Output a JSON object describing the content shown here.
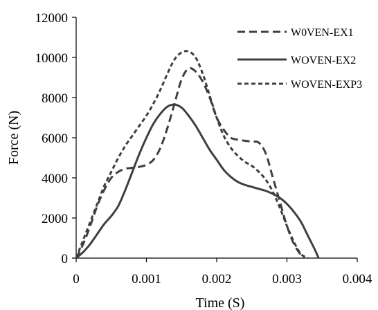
{
  "chart_data": {
    "type": "line",
    "title": "",
    "xlabel": "Time (S)",
    "ylabel": "Force (N)",
    "xlim": [
      0,
      0.004
    ],
    "ylim": [
      0,
      12000
    ],
    "x_ticks": [
      0,
      0.001,
      0.002,
      0.003,
      0.004
    ],
    "y_ticks": [
      0,
      2000,
      4000,
      6000,
      8000,
      10000,
      12000
    ],
    "x_tick_labels": [
      "0",
      "0.001",
      "0.002",
      "0.003",
      "0.004"
    ],
    "y_tick_labels": [
      "0",
      "2000",
      "4000",
      "6000",
      "8000",
      "10000",
      "12000"
    ],
    "grid": false,
    "legend_position": "top-right",
    "series": [
      {
        "name": "W0VEN-EX1",
        "style": "long-dash",
        "color": "#3f3f3f",
        "x": [
          0,
          0.0001,
          0.0002,
          0.0003,
          0.0004,
          0.0005,
          0.0006,
          0.0007,
          0.0008,
          0.0009,
          0.001,
          0.0011,
          0.0012,
          0.0013,
          0.0014,
          0.0015,
          0.0016,
          0.0017,
          0.0018,
          0.0019,
          0.002,
          0.0021,
          0.0022,
          0.0023,
          0.0024,
          0.0025,
          0.0026,
          0.0027,
          0.0028,
          0.0029,
          0.003,
          0.0031,
          0.0032,
          0.00325
        ],
        "y": [
          0,
          700,
          1600,
          2600,
          3400,
          4000,
          4300,
          4450,
          4500,
          4550,
          4650,
          4900,
          5500,
          6500,
          7700,
          8900,
          9450,
          9300,
          8800,
          8000,
          7000,
          6400,
          6000,
          5900,
          5850,
          5800,
          5750,
          5200,
          4000,
          2800,
          1600,
          700,
          150,
          0
        ]
      },
      {
        "name": "WOVEN-EX2",
        "style": "solid",
        "color": "#3f3f3f",
        "x": [
          0,
          0.0001,
          0.0002,
          0.0003,
          0.0004,
          0.0005,
          0.0006,
          0.0007,
          0.0008,
          0.0009,
          0.001,
          0.0011,
          0.0012,
          0.0013,
          0.0014,
          0.0015,
          0.0016,
          0.0017,
          0.0018,
          0.0019,
          0.002,
          0.0021,
          0.0022,
          0.0023,
          0.0024,
          0.0025,
          0.0026,
          0.0027,
          0.0028,
          0.0029,
          0.003,
          0.0031,
          0.0032,
          0.0033,
          0.0034,
          0.00345
        ],
        "y": [
          0,
          300,
          700,
          1200,
          1700,
          2100,
          2600,
          3400,
          4300,
          5200,
          6000,
          6700,
          7200,
          7550,
          7650,
          7500,
          7100,
          6600,
          6000,
          5400,
          4900,
          4400,
          4050,
          3800,
          3650,
          3550,
          3450,
          3350,
          3200,
          3000,
          2700,
          2300,
          1800,
          1100,
          400,
          0
        ]
      },
      {
        "name": "WOVEN-EXP3",
        "style": "short-dash",
        "color": "#3f3f3f",
        "x": [
          0,
          0.0001,
          0.0002,
          0.0003,
          0.0004,
          0.0005,
          0.0006,
          0.0007,
          0.0008,
          0.0009,
          0.001,
          0.0011,
          0.0012,
          0.0013,
          0.0014,
          0.0015,
          0.0016,
          0.0017,
          0.0018,
          0.0019,
          0.002,
          0.0021,
          0.0022,
          0.0023,
          0.0024,
          0.0025,
          0.0026,
          0.0027,
          0.0028,
          0.0029,
          0.003,
          0.0031,
          0.0032,
          0.0033
        ],
        "y": [
          0,
          900,
          1800,
          2700,
          3600,
          4300,
          5000,
          5600,
          6100,
          6600,
          7100,
          7700,
          8400,
          9200,
          9900,
          10250,
          10300,
          10000,
          9200,
          8100,
          7000,
          6100,
          5500,
          5100,
          4800,
          4600,
          4300,
          3900,
          3300,
          2500,
          1600,
          800,
          200,
          0
        ]
      }
    ]
  }
}
